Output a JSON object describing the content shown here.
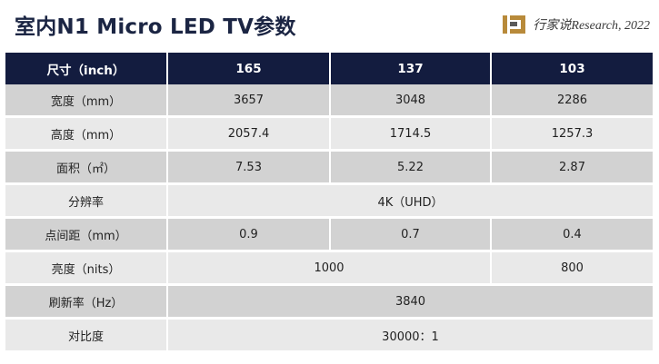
{
  "title": "室内N1 Micro LED TV参数",
  "brand": {
    "text": "行家说Research, 2022",
    "logo_color": "#b88a3a"
  },
  "colors": {
    "header_bg": "#131c3f",
    "row_dark": "#d2d2d2",
    "row_light": "#e9e9e9",
    "title": "#1b2543"
  },
  "table": {
    "headers": [
      "尺寸（inch）",
      "165",
      "137",
      "103"
    ],
    "rows": [
      {
        "label": "宽度（mm）",
        "values": [
          "3657",
          "3048",
          "2286"
        ]
      },
      {
        "label": "高度（mm）",
        "values": [
          "2057.4",
          "1714.5",
          "1257.3"
        ]
      },
      {
        "label": "面积（㎡）",
        "values": [
          "7.53",
          "5.22",
          "2.87"
        ]
      },
      {
        "label": "分辨率",
        "merged": "4K（UHD）"
      },
      {
        "label": "点间距（mm）",
        "values": [
          "0.9",
          "0.7",
          "0.4"
        ]
      },
      {
        "label": "亮度（nits）",
        "pair": "1000",
        "last": "800"
      },
      {
        "label": "刷新率（Hz）",
        "merged": "3840"
      },
      {
        "label": "对比度",
        "merged": "30000：1"
      }
    ]
  }
}
